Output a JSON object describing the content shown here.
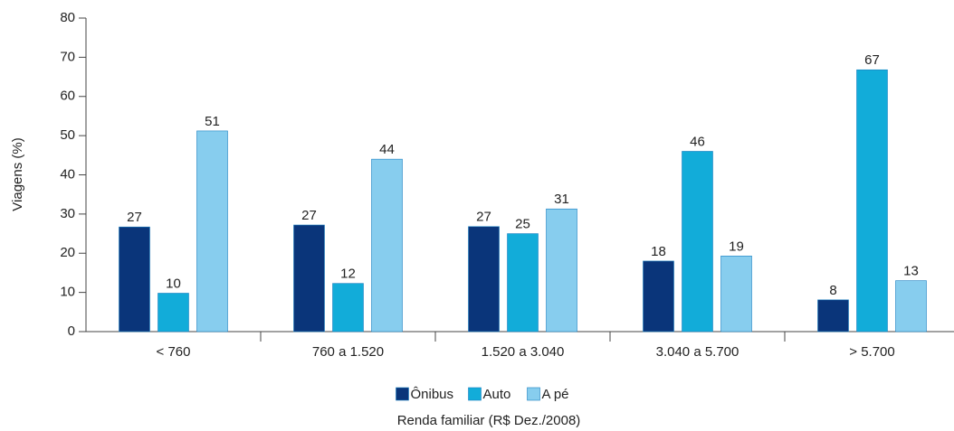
{
  "chart_data": {
    "type": "bar",
    "categories": [
      "< 760",
      "760 a 1.520",
      "1.520 a 3.040",
      "3.040 a 5.700",
      "> 5.700"
    ],
    "series": [
      {
        "name": "Ônibus",
        "color": "#0a357a",
        "values": [
          26.7,
          27.2,
          26.8,
          18,
          8.1
        ],
        "value_labels": [
          "27",
          "27",
          "27",
          "18",
          "8"
        ]
      },
      {
        "name": "Auto",
        "color": "#12acd9",
        "values": [
          9.8,
          12.3,
          25,
          46,
          66.8
        ],
        "value_labels": [
          "10",
          "12",
          "25",
          "46",
          "67"
        ]
      },
      {
        "name": "A pé",
        "color": "#87cdee",
        "values": [
          51.2,
          44,
          31.3,
          19.3,
          13
        ],
        "value_labels": [
          "51",
          "44",
          "31",
          "19",
          "13"
        ]
      }
    ],
    "ylabel": "Viagens (%)",
    "xlabel": "Renda familiar (R$ Dez./2008)",
    "ylim": [
      0,
      80
    ],
    "yticks": [
      0,
      10,
      20,
      30,
      40,
      50,
      60,
      70,
      80
    ],
    "grid": false,
    "legend": "bottom"
  }
}
